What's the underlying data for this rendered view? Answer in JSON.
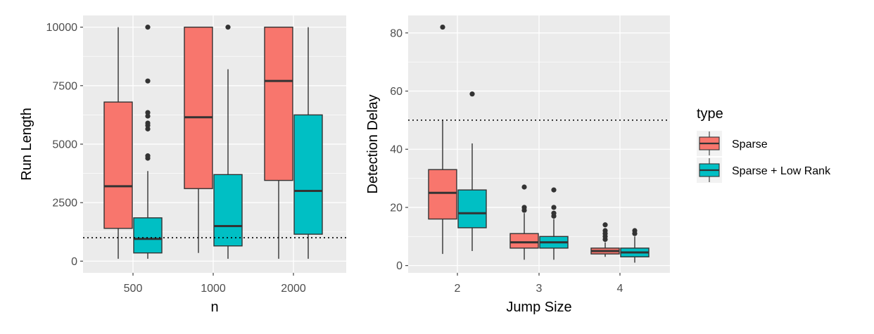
{
  "chart_data": [
    {
      "type": "box",
      "title": "",
      "xlabel": "n",
      "ylabel": "Run Length",
      "categories": [
        "500",
        "1000",
        "2000"
      ],
      "ylim": [
        -500,
        10500
      ],
      "y_ticks": [
        0,
        2500,
        5000,
        7500,
        10000
      ],
      "y_tick_labels": [
        "0",
        "2500",
        "5000",
        "7500",
        "10000"
      ],
      "reference_line": 1000,
      "series": [
        {
          "name": "Sparse",
          "boxes": [
            {
              "min": 100,
              "q1": 1400,
              "median": 3200,
              "q3": 6800,
              "max": 10000,
              "outliers": []
            },
            {
              "min": 350,
              "q1": 3100,
              "median": 6150,
              "q3": 10000,
              "max": 10000,
              "outliers": []
            },
            {
              "min": 100,
              "q1": 3450,
              "median": 7700,
              "q3": 10000,
              "max": 10000,
              "outliers": []
            }
          ]
        },
        {
          "name": "Sparse + Low Rank",
          "boxes": [
            {
              "min": 100,
              "q1": 350,
              "median": 950,
              "q3": 1850,
              "max": 3850,
              "outliers": [
                4400,
                4500,
                5650,
                5800,
                5900,
                6200,
                6350,
                7700,
                10000
              ]
            },
            {
              "min": 100,
              "q1": 650,
              "median": 1500,
              "q3": 3700,
              "max": 8200,
              "outliers": [
                10000
              ]
            },
            {
              "min": 100,
              "q1": 1150,
              "median": 3000,
              "q3": 6250,
              "max": 10000,
              "outliers": []
            }
          ]
        }
      ]
    },
    {
      "type": "box",
      "title": "",
      "xlabel": "Jump Size",
      "ylabel": "Detection Delay",
      "categories": [
        "2",
        "3",
        "4"
      ],
      "ylim": [
        -2.5,
        86
      ],
      "y_ticks": [
        0,
        20,
        40,
        60,
        80
      ],
      "y_tick_labels": [
        "0",
        "20",
        "40",
        "60",
        "80"
      ],
      "reference_line": 50,
      "series": [
        {
          "name": "Sparse",
          "boxes": [
            {
              "min": 4,
              "q1": 16,
              "median": 25,
              "q3": 33,
              "max": 50,
              "outliers": [
                82
              ]
            },
            {
              "min": 2,
              "q1": 6,
              "median": 8,
              "q3": 11,
              "max": 18,
              "outliers": [
                19,
                20,
                27
              ]
            },
            {
              "min": 3,
              "q1": 4,
              "median": 5,
              "q3": 6,
              "max": 8,
              "outliers": [
                9,
                10,
                11,
                12,
                14
              ]
            }
          ]
        },
        {
          "name": "Sparse + Low Rank",
          "boxes": [
            {
              "min": 5,
              "q1": 13,
              "median": 18,
              "q3": 26,
              "max": 42,
              "outliers": [
                59
              ]
            },
            {
              "min": 2,
              "q1": 6,
              "median": 8,
              "q3": 10,
              "max": 16,
              "outliers": [
                17,
                18,
                20,
                26
              ]
            },
            {
              "min": 1,
              "q1": 3,
              "median": 4.5,
              "q3": 6,
              "max": 10,
              "outliers": [
                11,
                12
              ]
            }
          ]
        }
      ]
    }
  ],
  "legend": {
    "title": "type",
    "items": [
      {
        "label": "Sparse",
        "color": "#F8766D"
      },
      {
        "label": "Sparse + Low Rank",
        "color": "#00BFC4"
      }
    ]
  },
  "colors": {
    "panel": "#EBEBEB",
    "grid": "#FFFFFF",
    "box_line": "#333333",
    "tick_text": "#4D4D4D"
  }
}
